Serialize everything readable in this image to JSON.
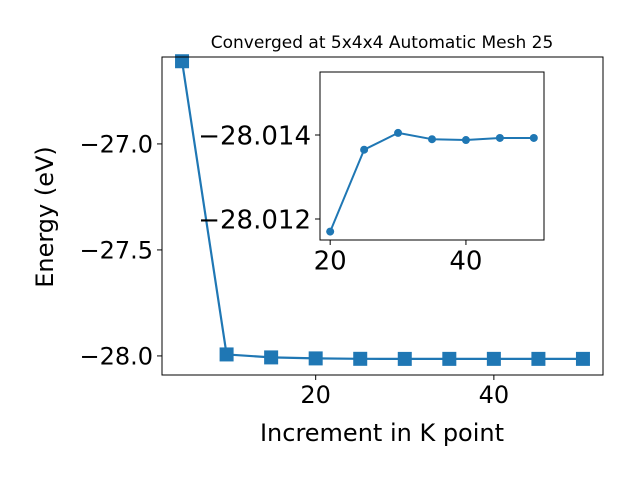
{
  "chart_data": [
    {
      "type": "line",
      "title": "Converged at 5x4x4 Automatic Mesh 25",
      "xlabel": "Increment in K point",
      "ylabel": "Energy (eV)",
      "x": [
        5,
        10,
        15,
        20,
        25,
        30,
        35,
        40,
        45,
        50
      ],
      "series": [
        {
          "values": [
            -26.61,
            -27.993,
            -28.007,
            -28.0117,
            -28.01365,
            -28.01405,
            -28.0139,
            -28.01388,
            -28.01393,
            -28.01393
          ]
        }
      ],
      "xlim": [
        2.75,
        52.25
      ],
      "ylim": [
        -28.09,
        -26.59
      ],
      "xticks": [
        20,
        40
      ],
      "xtick_labels": [
        "20",
        "40"
      ],
      "yticks": [
        -27.0,
        -27.5,
        -28.0
      ],
      "ytick_labels": [
        "−27.0",
        "−27.5",
        "−28.0"
      ],
      "color": "#1f77b4",
      "marker": "square",
      "grid": false
    },
    {
      "type": "line",
      "role": "inset",
      "x": [
        20,
        25,
        30,
        35,
        40,
        45,
        50
      ],
      "series": [
        {
          "values": [
            -28.0117,
            -28.01365,
            -28.01405,
            -28.0139,
            -28.01388,
            -28.01393,
            -28.01393
          ]
        }
      ],
      "xlim": [
        18.5,
        51.5
      ],
      "ylim": [
        -28.0115,
        -28.0155
      ],
      "xticks": [
        20,
        40
      ],
      "xtick_labels": [
        "20",
        "40"
      ],
      "yticks": [
        -28.014,
        -28.012
      ],
      "ytick_labels": [
        "−28.014",
        "−28.012"
      ],
      "color": "#1f77b4",
      "marker": "circle",
      "grid": false
    }
  ]
}
